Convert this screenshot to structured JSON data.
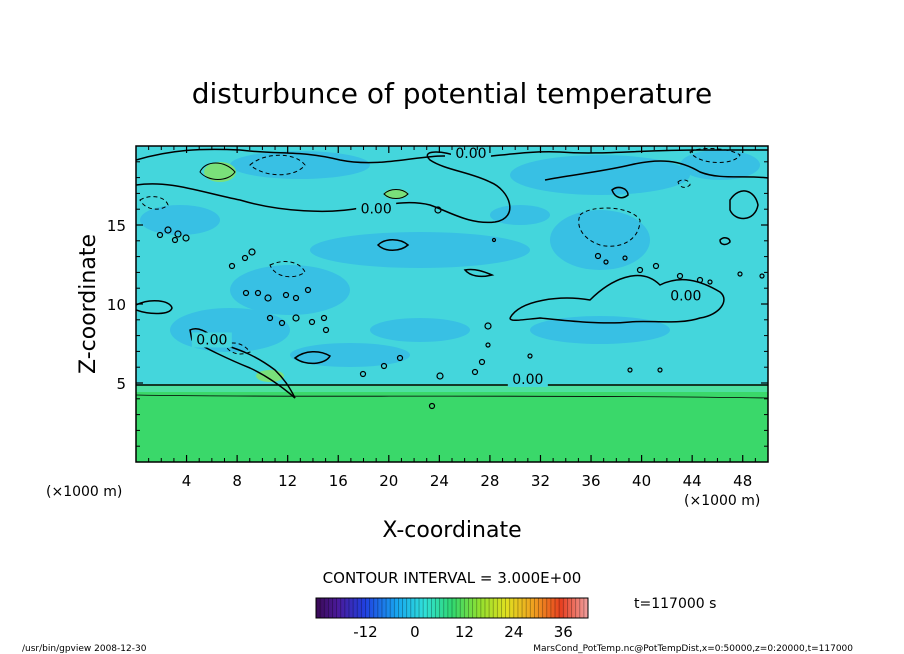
{
  "chart_data": {
    "type": "heatmap",
    "title": "disturbunce of potential temperature",
    "xlabel": "X-coordinate",
    "ylabel": "Z-coordinate",
    "x_unit": "(×1000 m)",
    "y_unit": "(×1000 m)",
    "xlim": [
      0,
      50
    ],
    "ylim": [
      0,
      20
    ],
    "x_ticks": [
      4,
      8,
      12,
      16,
      20,
      24,
      28,
      32,
      36,
      40,
      44,
      48
    ],
    "y_ticks": [
      5,
      10,
      15
    ],
    "contour_interval_text": "CONTOUR INTERVAL = 3.000E+00",
    "contour_labels": [
      {
        "text": "0.00",
        "x": 26.5,
        "z": 19.3
      },
      {
        "text": "0.00",
        "x": 19.0,
        "z": 15.8
      },
      {
        "text": "0.00",
        "x": 43.5,
        "z": 10.3
      },
      {
        "text": "0.00",
        "x": 6.0,
        "z": 7.5
      },
      {
        "text": "0.00",
        "x": 31.0,
        "z": 5.0
      }
    ],
    "colorbar": {
      "ticks": [
        -12,
        0,
        12,
        24,
        36
      ],
      "range": [
        -24,
        42
      ],
      "colormap": "rainbow"
    },
    "colors": {
      "upper_field": "#44d6dc",
      "upper_darker": "#38c0e4",
      "lower_field": "#3ad86a",
      "light_green": "#7ae07a",
      "contour": "#000000"
    }
  },
  "time_label": "t=117000 s",
  "footer_left": "/usr/bin/gpview  2008-12-30",
  "footer_right": "MarsCond_PotTemp.nc@PotTempDist,x=0:50000,z=0:20000,t=117000"
}
